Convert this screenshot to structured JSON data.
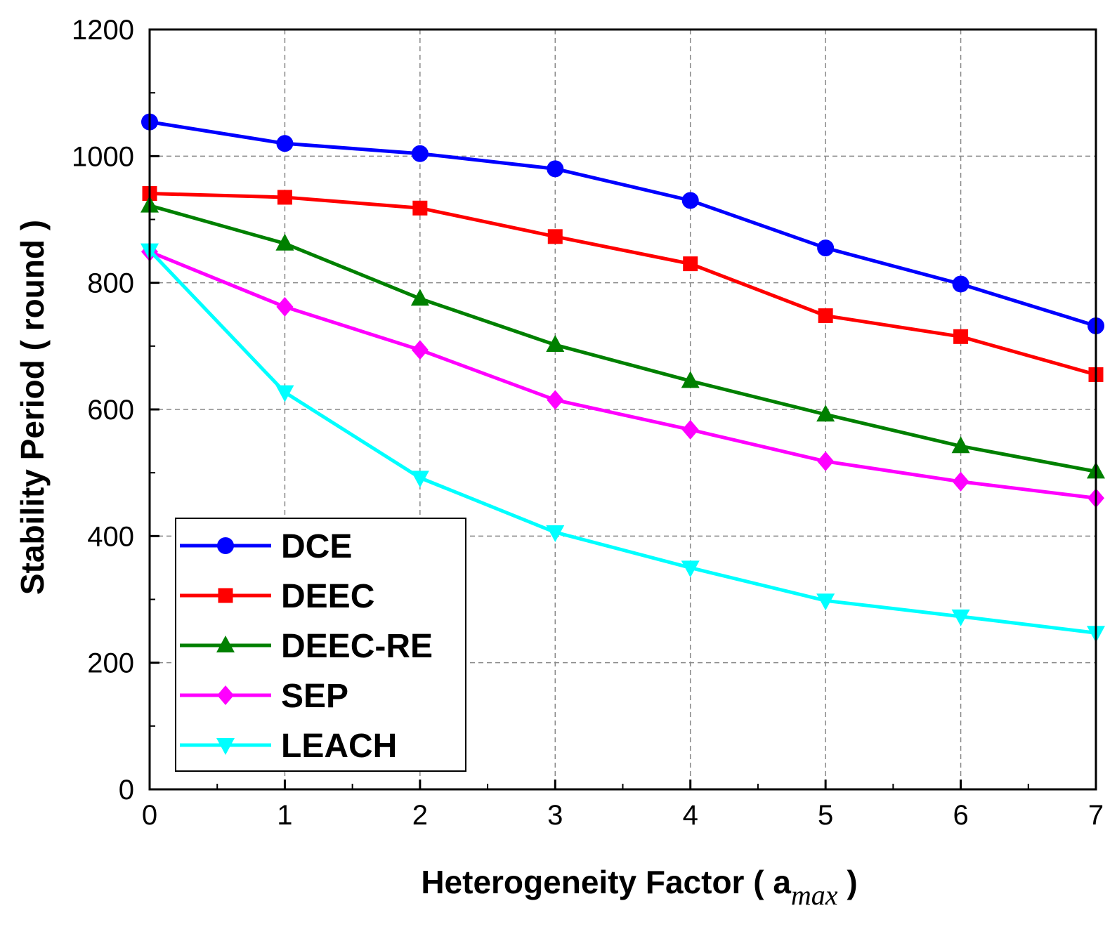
{
  "chart_data": {
    "type": "line",
    "title": "",
    "xlabel": "Heterogeneity Factor ( a",
    "xlabel_subscript": "max",
    "xlabel_close": " )",
    "ylabel": "Stability Period ( round )",
    "x": [
      0,
      1,
      2,
      3,
      4,
      5,
      6,
      7
    ],
    "xlim": [
      0,
      7
    ],
    "ylim": [
      0,
      1200
    ],
    "xticks": [
      0,
      1,
      2,
      3,
      4,
      5,
      6,
      7
    ],
    "yticks": [
      0,
      200,
      400,
      600,
      800,
      1000,
      1200
    ],
    "grid": true,
    "legend_position": "bottom-left",
    "series": [
      {
        "name": "DCE",
        "color": "#0000ff",
        "marker": "circle",
        "values": [
          1054,
          1020,
          1004,
          980,
          930,
          855,
          798,
          732
        ]
      },
      {
        "name": "DEEC",
        "color": "#ff0000",
        "marker": "square",
        "values": [
          941,
          935,
          918,
          873,
          830,
          748,
          715,
          655
        ]
      },
      {
        "name": "DEEC-RE",
        "color": "#008000",
        "marker": "triangle-up",
        "values": [
          922,
          862,
          775,
          702,
          645,
          592,
          542,
          502
        ]
      },
      {
        "name": "SEP",
        "color": "#ff00ff",
        "marker": "diamond",
        "values": [
          849,
          762,
          694,
          615,
          568,
          518,
          486,
          460
        ]
      },
      {
        "name": "LEACH",
        "color": "#00ffff",
        "marker": "triangle-down",
        "values": [
          851,
          627,
          492,
          406,
          350,
          298,
          273,
          247
        ]
      }
    ]
  }
}
